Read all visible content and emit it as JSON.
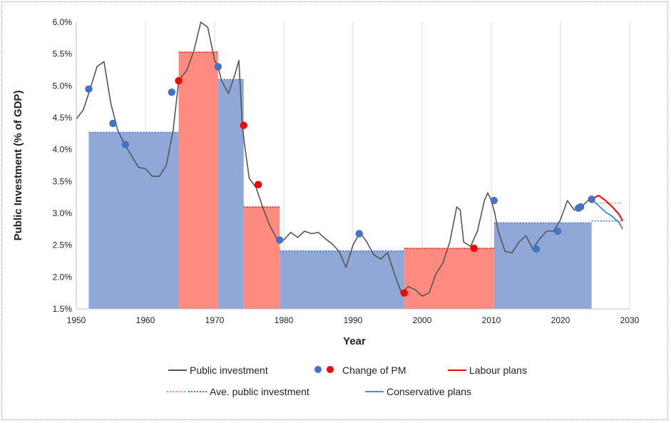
{
  "chart_data": {
    "type": "line",
    "title": "",
    "xlabel": "Year",
    "ylabel": "Public Investment (% of GDP)",
    "xlim": [
      1950,
      2030
    ],
    "ylim": [
      1.5,
      6.0
    ],
    "x_ticks": [
      1950,
      1960,
      1970,
      1980,
      1990,
      2000,
      2010,
      2020,
      2030
    ],
    "y_ticks": [
      1.5,
      2.0,
      2.5,
      3.0,
      3.5,
      4.0,
      4.5,
      5.0,
      5.5,
      6.0
    ],
    "y_tick_labels": [
      "1.5%",
      "2.0%",
      "2.5%",
      "3.0%",
      "3.5%",
      "4.0%",
      "4.5%",
      "5.0%",
      "5.5%",
      "6.0%"
    ],
    "x_tick_labels": [
      "1950",
      "1960",
      "1970",
      "1980",
      "1990",
      "2000",
      "2010",
      "2020",
      "2030"
    ],
    "grid": "vertical",
    "legend_position": "bottom",
    "colors": {
      "public_investment": "#555555",
      "conservative": "#4472c4",
      "labour": "#ff0000",
      "conservative_fill": "#8fa8d8",
      "labour_fill": "#ff8a80",
      "conservative_plans": "#4a90d9"
    },
    "periods": [
      {
        "party": "Conservative",
        "start": 1951.8,
        "end": 1964.8,
        "average": 4.27
      },
      {
        "party": "Labour",
        "start": 1964.8,
        "end": 1970.5,
        "average": 5.53
      },
      {
        "party": "Conservative",
        "start": 1970.5,
        "end": 1974.2,
        "average": 5.1
      },
      {
        "party": "Labour",
        "start": 1974.2,
        "end": 1979.4,
        "average": 3.1
      },
      {
        "party": "Conservative",
        "start": 1979.4,
        "end": 1997.4,
        "average": 2.41
      },
      {
        "party": "Labour",
        "start": 1997.4,
        "end": 2010.4,
        "average": 2.45
      },
      {
        "party": "Conservative",
        "start": 2010.4,
        "end": 2024.5,
        "average": 2.85
      }
    ],
    "series": [
      {
        "name": "Public investment",
        "x": [
          1950,
          1951,
          1952,
          1953,
          1954,
          1955,
          1956,
          1957,
          1958,
          1959,
          1960,
          1961,
          1962,
          1963,
          1964,
          1964.8,
          1966,
          1967,
          1968,
          1969,
          1970,
          1970.5,
          1971,
          1972,
          1973,
          1973.5,
          1974,
          1974.3,
          1975,
          1976,
          1977,
          1978,
          1979,
          1980,
          1981,
          1982,
          1983,
          1984,
          1985,
          1986,
          1987,
          1988,
          1989,
          1990,
          1991,
          1992,
          1993,
          1994,
          1995,
          1996,
          1997,
          1998,
          1999,
          2000,
          2001,
          2002,
          2003,
          2004,
          2005,
          2005.5,
          2006,
          2007,
          2008,
          2009,
          2009.5,
          2010,
          2010.5,
          2011,
          2012,
          2013,
          2014,
          2015,
          2016,
          2017,
          2018,
          2019,
          2020,
          2021,
          2022,
          2023,
          2024,
          2024.5
        ],
        "y": [
          4.48,
          4.62,
          4.95,
          5.3,
          5.38,
          4.72,
          4.3,
          4.08,
          3.9,
          3.72,
          3.7,
          3.58,
          3.58,
          3.75,
          4.3,
          5.08,
          5.25,
          5.55,
          6.0,
          5.92,
          5.4,
          5.3,
          5.08,
          4.88,
          5.2,
          5.4,
          4.38,
          4.1,
          3.55,
          3.4,
          3.08,
          2.8,
          2.6,
          2.58,
          2.7,
          2.62,
          2.72,
          2.68,
          2.7,
          2.6,
          2.52,
          2.4,
          2.15,
          2.5,
          2.7,
          2.55,
          2.35,
          2.28,
          2.38,
          2.05,
          1.75,
          1.85,
          1.8,
          1.7,
          1.75,
          2.05,
          2.22,
          2.55,
          3.1,
          3.05,
          2.55,
          2.48,
          2.72,
          3.2,
          3.32,
          3.2,
          3.0,
          2.72,
          2.4,
          2.38,
          2.55,
          2.65,
          2.44,
          2.6,
          2.72,
          2.72,
          2.9,
          3.2,
          3.05,
          3.1,
          3.2,
          3.22
        ]
      },
      {
        "name": "Labour plans",
        "x": [
          2024.5,
          2025.5,
          2026.5,
          2027.5,
          2028.5,
          2029
        ],
        "y": [
          3.22,
          3.28,
          3.2,
          3.1,
          2.98,
          2.88
        ]
      },
      {
        "name": "Conservative plans",
        "x": [
          2024.5,
          2025.5,
          2026.5,
          2027.5,
          2028.5,
          2029
        ],
        "y": [
          3.22,
          3.12,
          3.02,
          2.95,
          2.85,
          2.75
        ]
      }
    ],
    "change_of_pm": [
      {
        "year": 1951.8,
        "value": 4.95,
        "party": "Conservative"
      },
      {
        "year": 1955.3,
        "value": 4.41,
        "party": "Conservative"
      },
      {
        "year": 1957.1,
        "value": 4.08,
        "party": "Conservative"
      },
      {
        "year": 1963.8,
        "value": 4.9,
        "party": "Conservative"
      },
      {
        "year": 1964.8,
        "value": 5.08,
        "party": "Labour"
      },
      {
        "year": 1970.5,
        "value": 5.3,
        "party": "Conservative"
      },
      {
        "year": 1974.2,
        "value": 4.38,
        "party": "Labour"
      },
      {
        "year": 1976.3,
        "value": 3.45,
        "party": "Labour"
      },
      {
        "year": 1979.4,
        "value": 2.58,
        "party": "Conservative"
      },
      {
        "year": 1990.9,
        "value": 2.68,
        "party": "Conservative"
      },
      {
        "year": 1997.4,
        "value": 1.75,
        "party": "Labour"
      },
      {
        "year": 2007.5,
        "value": 2.45,
        "party": "Labour"
      },
      {
        "year": 2010.4,
        "value": 3.2,
        "party": "Conservative"
      },
      {
        "year": 2016.5,
        "value": 2.44,
        "party": "Conservative"
      },
      {
        "year": 2019.6,
        "value": 2.72,
        "party": "Conservative"
      },
      {
        "year": 2022.6,
        "value": 3.08,
        "party": "Conservative"
      },
      {
        "year": 2022.9,
        "value": 3.1,
        "party": "Conservative"
      },
      {
        "year": 2024.5,
        "value": 3.22,
        "party": "Conservative"
      }
    ],
    "plan_averages": [
      {
        "name": "Labour",
        "start": 2024.5,
        "end": 2029,
        "value": 3.16
      },
      {
        "name": "Conservative",
        "start": 2024.5,
        "end": 2029,
        "value": 2.88
      }
    ],
    "legend": [
      {
        "label": "Public investment",
        "kind": "line"
      },
      {
        "label": "Change of PM",
        "kind": "dots"
      },
      {
        "label": "Labour plans",
        "kind": "line"
      },
      {
        "label": "Ave. public investment",
        "kind": "dotted"
      },
      {
        "label": "Conservative plans",
        "kind": "line"
      }
    ]
  }
}
